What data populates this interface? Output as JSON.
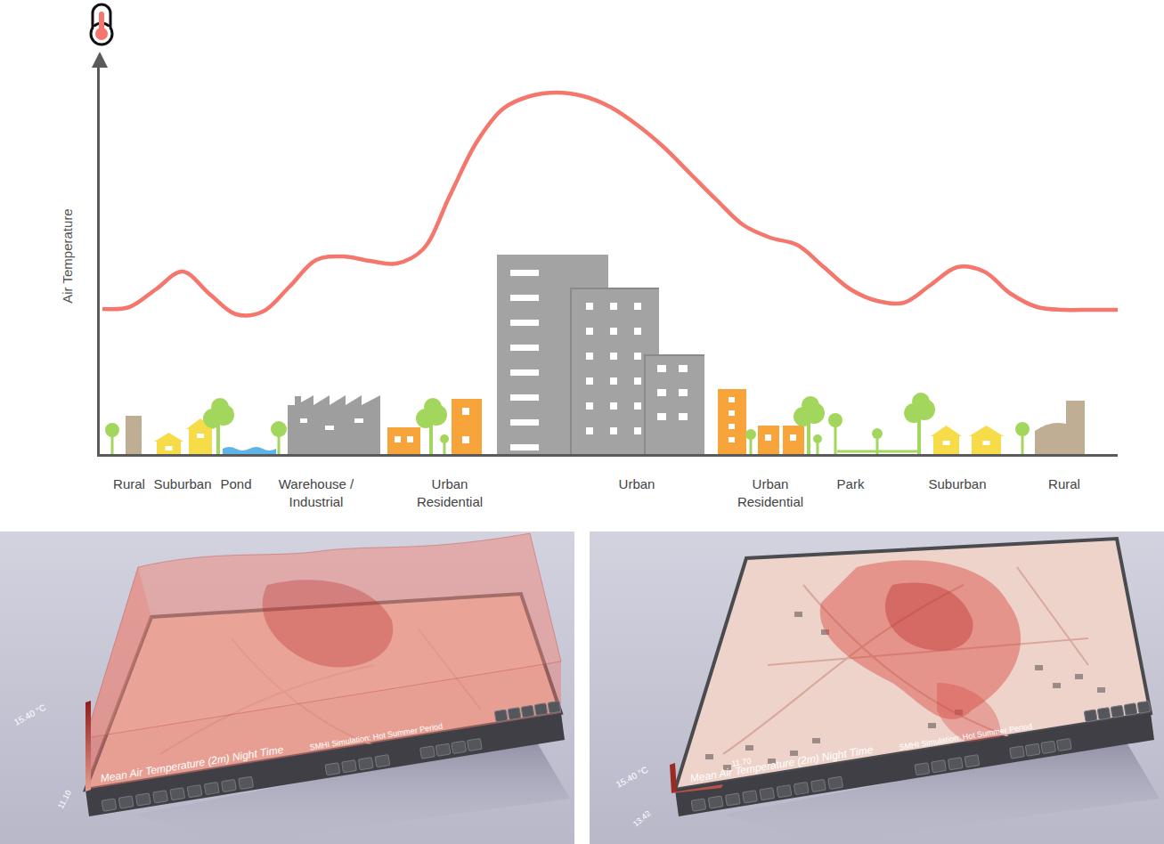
{
  "chart_data": {
    "type": "line",
    "y_label": "Air Temperature",
    "categories": [
      null,
      "Rural",
      null,
      "Suburban",
      null,
      "Pond",
      null,
      null,
      "Warehouse / Industrial",
      null,
      null,
      null,
      null,
      "Urban Residential",
      null,
      null,
      null,
      null,
      null,
      null,
      "Urban",
      null,
      null,
      null,
      null,
      "Urban Residential",
      null,
      null,
      "Park",
      null,
      null,
      null,
      "Suburban",
      null,
      null,
      null,
      "Rural",
      null,
      null
    ],
    "values": [
      163,
      165,
      185,
      205,
      180,
      157,
      160,
      188,
      218,
      222,
      217,
      214,
      230,
      290,
      350,
      388,
      402,
      406,
      402,
      390,
      370,
      345,
      315,
      285,
      257,
      243,
      235,
      210,
      185,
      172,
      170,
      190,
      210,
      205,
      180,
      165,
      162,
      162,
      162
    ],
    "color": "#f4766c",
    "line_style": "solid",
    "ylim": [
      0,
      445
    ],
    "grid": false,
    "tick_labels": "x"
  },
  "panels": [
    {
      "caption": "Mean Air Temperature (2m) Night Time",
      "subtitle": "SMHI Simulation: Hot Summer Period",
      "scale_max": "15.40 °C",
      "scale_min": "11.10"
    },
    {
      "caption": "Mean Air Temperature (2m) Night Time",
      "subtitle": "SMHI Simulation: Hot Summer Period",
      "scale_max": "15.40 °C",
      "scale_min": "13.42",
      "scale_mark": "11.70"
    }
  ]
}
